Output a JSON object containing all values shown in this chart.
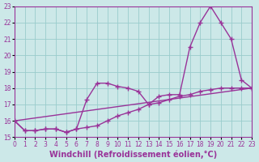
{
  "bg_color": "#cce8e8",
  "line_color": "#993399",
  "grid_color": "#99cccc",
  "ylim": [
    15,
    23
  ],
  "xlim": [
    0,
    23
  ],
  "yticks": [
    15,
    16,
    17,
    18,
    19,
    20,
    21,
    22,
    23
  ],
  "xticks": [
    0,
    1,
    2,
    3,
    4,
    5,
    6,
    7,
    8,
    9,
    10,
    11,
    12,
    13,
    14,
    15,
    16,
    17,
    18,
    19,
    20,
    21,
    22,
    23
  ],
  "xlabel": "Windchill (Refroidissement éolien,°C)",
  "line1_x": [
    0,
    23
  ],
  "line1_y": [
    16.0,
    18.0
  ],
  "line2_x": [
    0,
    1,
    2,
    3,
    4,
    5,
    6,
    7,
    8,
    9,
    10,
    11,
    12,
    13,
    14,
    15,
    16,
    17,
    18,
    19,
    20,
    21,
    22,
    23
  ],
  "line2_y": [
    16.0,
    15.4,
    15.4,
    15.5,
    15.5,
    15.3,
    15.5,
    17.3,
    18.3,
    18.3,
    18.1,
    18.0,
    17.8,
    17.0,
    17.5,
    17.6,
    17.6,
    20.5,
    22.0,
    23.0,
    22.0,
    21.0,
    18.5,
    18.0
  ],
  "line3_x": [
    0,
    1,
    2,
    3,
    4,
    5,
    6,
    7,
    8,
    9,
    10,
    11,
    12,
    13,
    14,
    15,
    16,
    17,
    18,
    19,
    20,
    21,
    22,
    23
  ],
  "line3_y": [
    16.0,
    15.4,
    15.4,
    15.5,
    15.5,
    15.3,
    15.5,
    15.6,
    15.7,
    16.0,
    16.3,
    16.5,
    16.7,
    17.0,
    17.1,
    17.3,
    17.5,
    17.6,
    17.8,
    17.9,
    18.0,
    18.0,
    18.0,
    18.0
  ],
  "marker": "+",
  "markersize": 4,
  "linewidth": 1.0,
  "tick_labelsize": 5.5,
  "xlabel_fontsize": 7
}
